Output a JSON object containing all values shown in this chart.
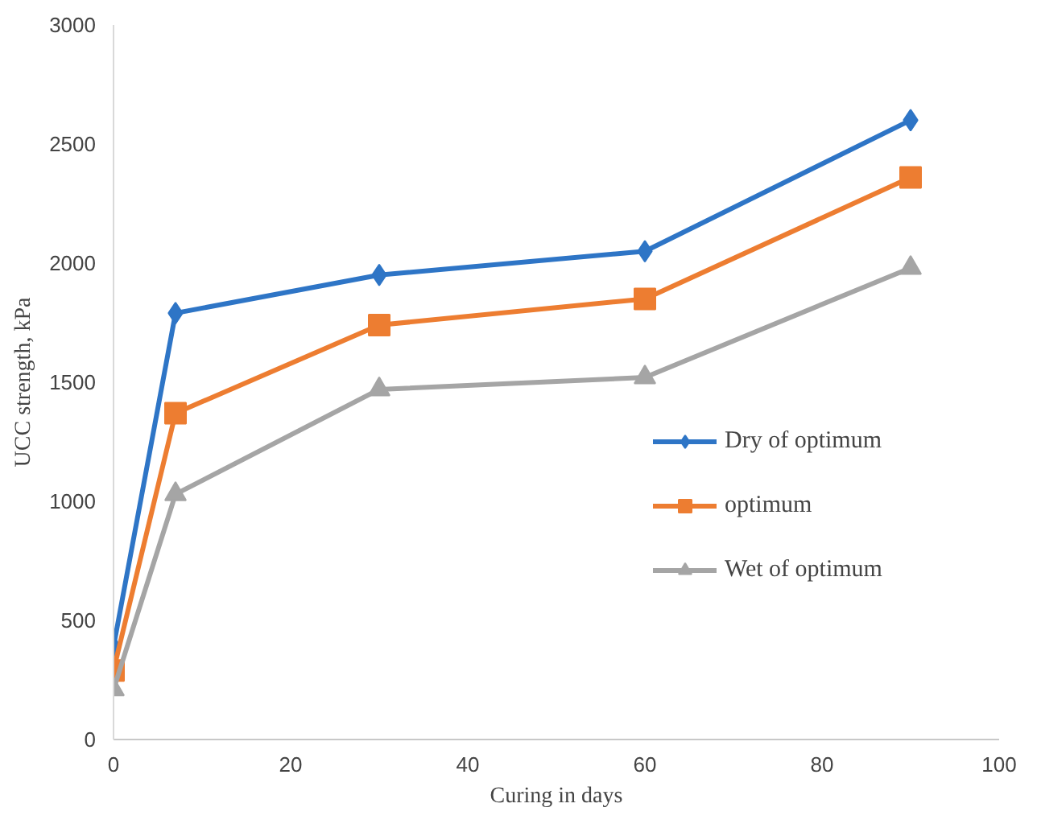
{
  "chart_data": {
    "type": "line",
    "xlabel": "Curing in days",
    "ylabel": "UCC strength, kPa",
    "x": [
      0,
      7,
      30,
      60,
      90
    ],
    "series": [
      {
        "name": "Dry of optimum",
        "color": "#2e75c6",
        "marker": "diamond",
        "values": [
          390,
          1790,
          1950,
          2050,
          2600
        ]
      },
      {
        "name": "optimum",
        "color": "#ed7d31",
        "marker": "square",
        "values": [
          290,
          1370,
          1740,
          1850,
          2360
        ]
      },
      {
        "name": "Wet of optimum",
        "color": "#a5a5a5",
        "marker": "triangle",
        "values": [
          210,
          1030,
          1470,
          1520,
          1980
        ]
      }
    ],
    "xlim": [
      0,
      100
    ],
    "xticks": [
      0,
      20,
      40,
      60,
      80,
      100
    ],
    "ylim": [
      0,
      3000
    ],
    "yticks": [
      0,
      500,
      1000,
      1500,
      2000,
      2500,
      3000
    ],
    "grid": false,
    "legend": "right",
    "line_style": "solid"
  }
}
